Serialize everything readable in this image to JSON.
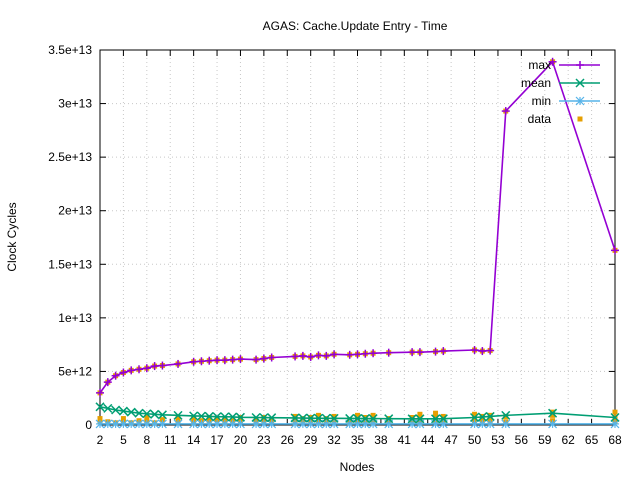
{
  "chart_data": {
    "type": "line",
    "title": "AGAS: Cache.Update Entry - Time",
    "xlabel": "Nodes",
    "ylabel": "Clock Cycles",
    "xlim": [
      2,
      68
    ],
    "ylim": [
      0,
      35000000000000.0
    ],
    "grid": true,
    "legend_position": "top-right",
    "x_tick_labels": [
      "2",
      "5",
      "8",
      "11",
      "14",
      "17",
      "20",
      "23",
      "26",
      "29",
      "32",
      "35",
      "38",
      "41",
      "44",
      "47",
      "50",
      "53",
      "56",
      "59",
      "62",
      "65",
      "68"
    ],
    "y_tick_values": [
      0,
      5000000000000.0,
      10000000000000.0,
      15000000000000.0,
      20000000000000.0,
      25000000000000.0,
      30000000000000.0,
      35000000000000.0
    ],
    "y_tick_labels": [
      "0",
      "5e+12",
      "1e+13",
      "1.5e+13",
      "2e+13",
      "2.5e+13",
      "3e+13",
      "3.5e+13"
    ],
    "x": [
      2,
      3,
      4,
      5,
      6,
      7,
      8,
      9,
      10,
      12,
      14,
      15,
      16,
      17,
      18,
      19,
      20,
      22,
      23,
      24,
      27,
      28,
      29,
      30,
      31,
      32,
      34,
      35,
      36,
      37,
      39,
      42,
      43,
      45,
      46,
      50,
      51,
      52,
      54,
      60,
      68
    ],
    "series": [
      {
        "name": "max",
        "color": "#9400d3",
        "marker": "plus",
        "values": [
          3000000000000.0,
          4000000000000.0,
          4600000000000.0,
          4900000000000.0,
          5100000000000.0,
          5200000000000.0,
          5300000000000.0,
          5500000000000.0,
          5550000000000.0,
          5700000000000.0,
          5900000000000.0,
          5950000000000.0,
          6000000000000.0,
          6050000000000.0,
          6050000000000.0,
          6100000000000.0,
          6150000000000.0,
          6100000000000.0,
          6200000000000.0,
          6300000000000.0,
          6400000000000.0,
          6450000000000.0,
          6350000000000.0,
          6500000000000.0,
          6450000000000.0,
          6600000000000.0,
          6550000000000.0,
          6600000000000.0,
          6650000000000.0,
          6700000000000.0,
          6750000000000.0,
          6800000000000.0,
          6800000000000.0,
          6850000000000.0,
          6900000000000.0,
          7000000000000.0,
          6900000000000.0,
          6950000000000.0,
          29300000000000.0,
          33900000000000.0,
          16300000000000.0
        ]
      },
      {
        "name": "mean",
        "color": "#009e73",
        "marker": "cross",
        "values": [
          1700000000000.0,
          1550000000000.0,
          1400000000000.0,
          1300000000000.0,
          1200000000000.0,
          1100000000000.0,
          1050000000000.0,
          1000000000000.0,
          950000000000.0,
          900000000000.0,
          850000000000.0,
          830000000000.0,
          800000000000.0,
          780000000000.0,
          770000000000.0,
          750000000000.0,
          720000000000.0,
          700000000000.0,
          690000000000.0,
          680000000000.0,
          660000000000.0,
          650000000000.0,
          640000000000.0,
          630000000000.0,
          630000000000.0,
          620000000000.0,
          610000000000.0,
          610000000000.0,
          600000000000.0,
          600000000000.0,
          590000000000.0,
          580000000000.0,
          580000000000.0,
          580000000000.0,
          590000000000.0,
          700000000000.0,
          750000000000.0,
          800000000000.0,
          900000000000.0,
          1100000000000.0,
          700000000000.0
        ]
      },
      {
        "name": "min",
        "color": "#56b4e9",
        "marker": "star",
        "values": [
          100000000000.0,
          100000000000.0,
          100000000000.0,
          100000000000.0,
          100000000000.0,
          100000000000.0,
          100000000000.0,
          100000000000.0,
          100000000000.0,
          100000000000.0,
          100000000000.0,
          100000000000.0,
          100000000000.0,
          100000000000.0,
          100000000000.0,
          100000000000.0,
          100000000000.0,
          100000000000.0,
          100000000000.0,
          100000000000.0,
          100000000000.0,
          100000000000.0,
          100000000000.0,
          100000000000.0,
          100000000000.0,
          100000000000.0,
          100000000000.0,
          100000000000.0,
          100000000000.0,
          100000000000.0,
          100000000000.0,
          100000000000.0,
          100000000000.0,
          100000000000.0,
          100000000000.0,
          100000000000.0,
          100000000000.0,
          100000000000.0,
          100000000000.0,
          100000000000.0,
          100000000000.0
        ]
      }
    ],
    "scatter": {
      "name": "data",
      "color": "#e69f00",
      "marker": "square",
      "points": [
        [
          2,
          3000000000000.0
        ],
        [
          3,
          4000000000000.0
        ],
        [
          4,
          4600000000000.0
        ],
        [
          5,
          4900000000000.0
        ],
        [
          6,
          5100000000000.0
        ],
        [
          7,
          5200000000000.0
        ],
        [
          8,
          5300000000000.0
        ],
        [
          9,
          5500000000000.0
        ],
        [
          10,
          5550000000000.0
        ],
        [
          12,
          5700000000000.0
        ],
        [
          14,
          5900000000000.0
        ],
        [
          15,
          5950000000000.0
        ],
        [
          16,
          6000000000000.0
        ],
        [
          17,
          6050000000000.0
        ],
        [
          18,
          6050000000000.0
        ],
        [
          19,
          6100000000000.0
        ],
        [
          20,
          6150000000000.0
        ],
        [
          22,
          6100000000000.0
        ],
        [
          23,
          6200000000000.0
        ],
        [
          24,
          6300000000000.0
        ],
        [
          27,
          6400000000000.0
        ],
        [
          28,
          6450000000000.0
        ],
        [
          29,
          6350000000000.0
        ],
        [
          30,
          6500000000000.0
        ],
        [
          31,
          6450000000000.0
        ],
        [
          32,
          6600000000000.0
        ],
        [
          34,
          6550000000000.0
        ],
        [
          35,
          6600000000000.0
        ],
        [
          36,
          6650000000000.0
        ],
        [
          37,
          6700000000000.0
        ],
        [
          39,
          6750000000000.0
        ],
        [
          42,
          6800000000000.0
        ],
        [
          43,
          6800000000000.0
        ],
        [
          45,
          6850000000000.0
        ],
        [
          46,
          6900000000000.0
        ],
        [
          50,
          7000000000000.0
        ],
        [
          51,
          6900000000000.0
        ],
        [
          52,
          6950000000000.0
        ],
        [
          54,
          29300000000000.0
        ],
        [
          60,
          33900000000000.0
        ],
        [
          68,
          16300000000000.0
        ],
        [
          2,
          300000000000.0
        ],
        [
          2,
          600000000000.0
        ],
        [
          3,
          300000000000.0
        ],
        [
          4,
          200000000000.0
        ],
        [
          5,
          300000000000.0
        ],
        [
          5,
          600000000000.0
        ],
        [
          6,
          200000000000.0
        ],
        [
          7,
          400000000000.0
        ],
        [
          8,
          300000000000.0
        ],
        [
          8,
          700000000000.0
        ],
        [
          9,
          200000000000.0
        ],
        [
          10,
          500000000000.0
        ],
        [
          12,
          300000000000.0
        ],
        [
          12,
          700000000000.0
        ],
        [
          14,
          200000000000.0
        ],
        [
          14,
          600000000000.0
        ],
        [
          15,
          400000000000.0
        ],
        [
          16,
          300000000000.0
        ],
        [
          16,
          700000000000.0
        ],
        [
          17,
          500000000000.0
        ],
        [
          18,
          200000000000.0
        ],
        [
          18,
          600000000000.0
        ],
        [
          19,
          400000000000.0
        ],
        [
          20,
          300000000000.0
        ],
        [
          20,
          700000000000.0
        ],
        [
          22,
          200000000000.0
        ],
        [
          22,
          500000000000.0
        ],
        [
          23,
          300000000000.0
        ],
        [
          23,
          700000000000.0
        ],
        [
          24,
          400000000000.0
        ],
        [
          27,
          200000000000.0
        ],
        [
          27,
          500000000000.0
        ],
        [
          27,
          800000000000.0
        ],
        [
          28,
          300000000000.0
        ],
        [
          28,
          600000000000.0
        ],
        [
          29,
          400000000000.0
        ],
        [
          29,
          700000000000.0
        ],
        [
          30,
          200000000000.0
        ],
        [
          30,
          500000000000.0
        ],
        [
          30,
          900000000000.0
        ],
        [
          31,
          300000000000.0
        ],
        [
          31,
          600000000000.0
        ],
        [
          32,
          400000000000.0
        ],
        [
          32,
          800000000000.0
        ],
        [
          34,
          200000000000.0
        ],
        [
          34,
          500000000000.0
        ],
        [
          35,
          300000000000.0
        ],
        [
          35,
          600000000000.0
        ],
        [
          35,
          900000000000.0
        ],
        [
          36,
          400000000000.0
        ],
        [
          36,
          700000000000.0
        ],
        [
          37,
          200000000000.0
        ],
        [
          37,
          600000000000.0
        ],
        [
          37,
          900000000000.0
        ],
        [
          39,
          300000000000.0
        ],
        [
          39,
          600000000000.0
        ],
        [
          42,
          400000000000.0
        ],
        [
          42,
          700000000000.0
        ],
        [
          43,
          200000000000.0
        ],
        [
          43,
          600000000000.0
        ],
        [
          43,
          1000000000000.0
        ],
        [
          45,
          300000000000.0
        ],
        [
          45,
          700000000000.0
        ],
        [
          45,
          1100000000000.0
        ],
        [
          46,
          400000000000.0
        ],
        [
          46,
          800000000000.0
        ],
        [
          50,
          300000000000.0
        ],
        [
          50,
          700000000000.0
        ],
        [
          50,
          1000000000000.0
        ],
        [
          51,
          400000000000.0
        ],
        [
          51,
          800000000000.0
        ],
        [
          52,
          200000000000.0
        ],
        [
          52,
          600000000000.0
        ],
        [
          52,
          900000000000.0
        ],
        [
          54,
          300000000000.0
        ],
        [
          54,
          800000000000.0
        ],
        [
          60,
          400000000000.0
        ],
        [
          60,
          900000000000.0
        ],
        [
          60,
          1200000000000.0
        ],
        [
          68,
          300000000000.0
        ],
        [
          68,
          700000000000.0
        ],
        [
          68,
          1200000000000.0
        ]
      ]
    }
  }
}
